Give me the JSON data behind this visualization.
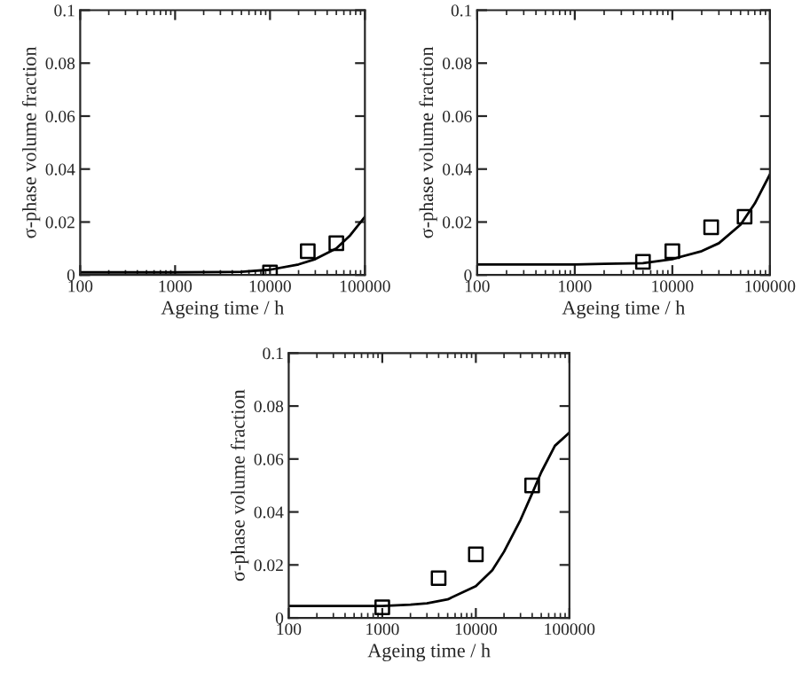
{
  "chart_data": [
    {
      "type": "line",
      "xlabel": "Ageing time / h",
      "ylabel": "σ-phase volume fraction",
      "log": "x",
      "xlim": [
        100,
        100000
      ],
      "ylim": [
        0,
        0.1
      ],
      "xticks": [
        100,
        1000,
        10000,
        100000
      ],
      "yticks": [
        0,
        0.02,
        0.04,
        0.06,
        0.08,
        0.1
      ],
      "grid": false,
      "legend": false,
      "series": [
        {
          "color": "#000000",
          "line_style": "solid",
          "marker": "none",
          "x": [
            100,
            1000,
            5000,
            10000,
            20000,
            30000,
            50000,
            70000,
            100000
          ],
          "values": [
            0.001,
            0.001,
            0.0012,
            0.002,
            0.004,
            0.006,
            0.01,
            0.015,
            0.022
          ]
        },
        {
          "type": "scatter",
          "color": "#000000",
          "marker": "square",
          "x": [
            10000,
            25000,
            50000
          ],
          "values": [
            0.001,
            0.009,
            0.012
          ]
        }
      ]
    },
    {
      "type": "line",
      "xlabel": "Ageing time / h",
      "ylabel": "σ-phase volume fraction",
      "log": "x",
      "xlim": [
        100,
        100000
      ],
      "ylim": [
        0,
        0.1
      ],
      "xticks": [
        100,
        1000,
        10000,
        100000
      ],
      "yticks": [
        0,
        0.02,
        0.04,
        0.06,
        0.08,
        0.1
      ],
      "grid": false,
      "legend": false,
      "series": [
        {
          "color": "#000000",
          "line_style": "solid",
          "marker": "none",
          "x": [
            100,
            1000,
            2000,
            5000,
            10000,
            20000,
            30000,
            50000,
            70000,
            100000
          ],
          "values": [
            0.004,
            0.004,
            0.0042,
            0.0045,
            0.006,
            0.009,
            0.012,
            0.019,
            0.027,
            0.038
          ]
        },
        {
          "type": "scatter",
          "color": "#000000",
          "marker": "square",
          "x": [
            5000,
            10000,
            25000,
            55000
          ],
          "values": [
            0.005,
            0.009,
            0.018,
            0.022
          ]
        }
      ]
    },
    {
      "type": "line",
      "xlabel": "Ageing time / h",
      "ylabel": "σ-phase volume fraction",
      "log": "x",
      "xlim": [
        100,
        100000
      ],
      "ylim": [
        0,
        0.1
      ],
      "xticks": [
        100,
        1000,
        10000,
        100000
      ],
      "yticks": [
        0,
        0.02,
        0.04,
        0.06,
        0.08,
        0.1
      ],
      "grid": false,
      "legend": false,
      "series": [
        {
          "color": "#000000",
          "line_style": "solid",
          "marker": "none",
          "x": [
            100,
            1000,
            2000,
            3000,
            5000,
            10000,
            15000,
            20000,
            30000,
            40000,
            50000,
            70000,
            100000
          ],
          "values": [
            0.0045,
            0.0045,
            0.005,
            0.0055,
            0.007,
            0.012,
            0.018,
            0.025,
            0.037,
            0.047,
            0.055,
            0.065,
            0.07
          ]
        },
        {
          "type": "scatter",
          "color": "#000000",
          "marker": "square",
          "x": [
            1000,
            4000,
            10000,
            40000
          ],
          "values": [
            0.004,
            0.015,
            0.024,
            0.05
          ]
        }
      ]
    }
  ]
}
